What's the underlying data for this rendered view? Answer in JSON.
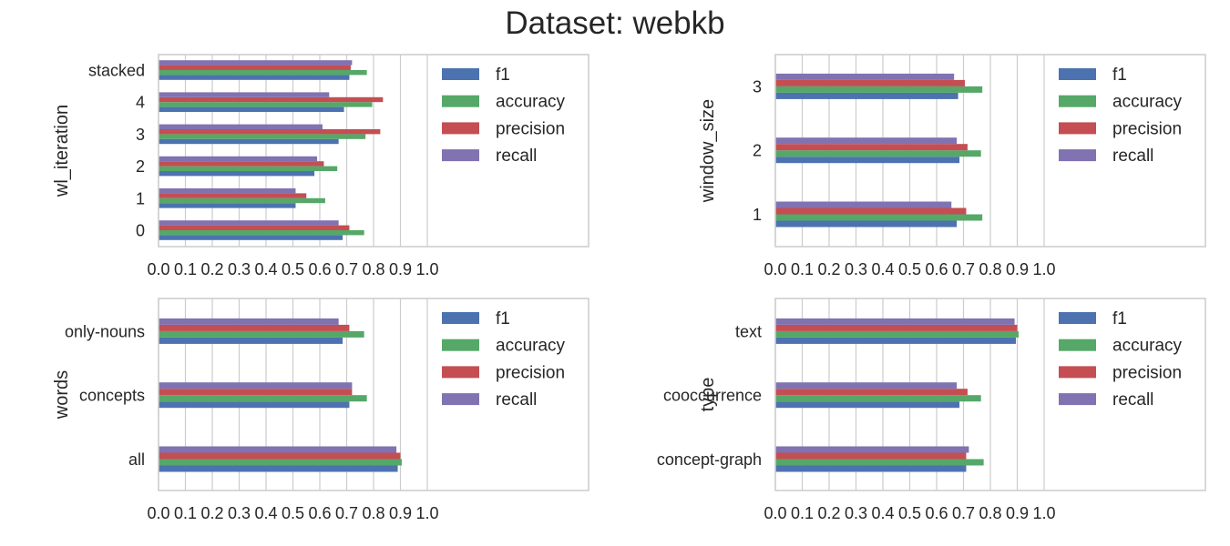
{
  "figure": {
    "title": "Dataset: webkb"
  },
  "palette": {
    "f1": "#4c72b0",
    "accuracy": "#55a868",
    "precision": "#c44e52",
    "recall": "#8172b2",
    "grid": "#cccccc",
    "text": "#262626"
  },
  "chart_data": [
    {
      "type": "bar",
      "orientation": "horizontal",
      "ylabel": "wl_iteration",
      "categories": [
        "0",
        "1",
        "2",
        "3",
        "4",
        "stacked"
      ],
      "series": [
        {
          "name": "f1",
          "values": [
            0.685,
            0.51,
            0.58,
            0.67,
            0.69,
            0.71
          ]
        },
        {
          "name": "accuracy",
          "values": [
            0.765,
            0.62,
            0.665,
            0.77,
            0.795,
            0.775
          ]
        },
        {
          "name": "precision",
          "values": [
            0.71,
            0.55,
            0.615,
            0.825,
            0.835,
            0.715
          ]
        },
        {
          "name": "recall",
          "values": [
            0.67,
            0.51,
            0.59,
            0.61,
            0.635,
            0.72
          ]
        }
      ],
      "xticks": [
        "0.0",
        "0.1",
        "0.2",
        "0.3",
        "0.4",
        "0.5",
        "0.6",
        "0.7",
        "0.8",
        "0.9",
        "1.0"
      ],
      "xlim": [
        0,
        1.6
      ],
      "grid": "vertical",
      "legend": "upper right"
    },
    {
      "type": "bar",
      "orientation": "horizontal",
      "ylabel": "window_size",
      "categories": [
        "1",
        "2",
        "3"
      ],
      "series": [
        {
          "name": "f1",
          "values": [
            0.675,
            0.685,
            0.68
          ]
        },
        {
          "name": "accuracy",
          "values": [
            0.77,
            0.765,
            0.77
          ]
        },
        {
          "name": "precision",
          "values": [
            0.71,
            0.715,
            0.705
          ]
        },
        {
          "name": "recall",
          "values": [
            0.655,
            0.675,
            0.665
          ]
        }
      ],
      "xticks": [
        "0.0",
        "0.1",
        "0.2",
        "0.3",
        "0.4",
        "0.5",
        "0.6",
        "0.7",
        "0.8",
        "0.9",
        "1.0"
      ],
      "xlim": [
        0,
        1.6
      ],
      "grid": "vertical",
      "legend": "upper right"
    },
    {
      "type": "bar",
      "orientation": "horizontal",
      "ylabel": "words",
      "categories": [
        "all",
        "concepts",
        "only-nouns"
      ],
      "series": [
        {
          "name": "f1",
          "values": [
            0.89,
            0.71,
            0.685
          ]
        },
        {
          "name": "accuracy",
          "values": [
            0.905,
            0.775,
            0.765
          ]
        },
        {
          "name": "precision",
          "values": [
            0.9,
            0.72,
            0.71
          ]
        },
        {
          "name": "recall",
          "values": [
            0.885,
            0.72,
            0.67
          ]
        }
      ],
      "xticks": [
        "0.0",
        "0.1",
        "0.2",
        "0.3",
        "0.4",
        "0.5",
        "0.6",
        "0.7",
        "0.8",
        "0.9",
        "1.0"
      ],
      "xlim": [
        0,
        1.6
      ],
      "grid": "vertical",
      "legend": "upper right"
    },
    {
      "type": "bar",
      "orientation": "horizontal",
      "ylabel": "type",
      "categories": [
        "concept-graph",
        "cooccurrence",
        "text"
      ],
      "series": [
        {
          "name": "f1",
          "values": [
            0.71,
            0.685,
            0.895
          ]
        },
        {
          "name": "accuracy",
          "values": [
            0.775,
            0.765,
            0.905
          ]
        },
        {
          "name": "precision",
          "values": [
            0.71,
            0.715,
            0.9
          ]
        },
        {
          "name": "recall",
          "values": [
            0.72,
            0.675,
            0.89
          ]
        }
      ],
      "xticks": [
        "0.0",
        "0.1",
        "0.2",
        "0.3",
        "0.4",
        "0.5",
        "0.6",
        "0.7",
        "0.8",
        "0.9",
        "1.0"
      ],
      "xlim": [
        0,
        1.6
      ],
      "grid": "vertical",
      "legend": "upper right"
    }
  ]
}
